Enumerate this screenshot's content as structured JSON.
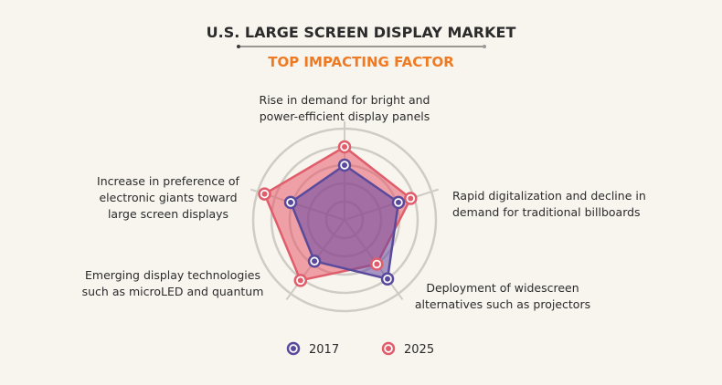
{
  "header": {
    "title": "U.S. LARGE SCREEN DISPLAY MARKET",
    "subtitle": "TOP IMPACTING FACTOR"
  },
  "colors": {
    "background": "#f8f5ef",
    "title": "#2b2b2b",
    "subtitle": "#ee7a24",
    "series_2017": "#5a4a9c",
    "series_2025": "#e05d6b",
    "grid": "#cfcbc5"
  },
  "chart_data": {
    "type": "radar",
    "title": "U.S. LARGE SCREEN DISPLAY MARKET",
    "subtitle": "TOP IMPACTING FACTOR",
    "scale_max": 5,
    "rings": 5,
    "grid": true,
    "legend_position": "bottom",
    "axes": [
      {
        "lines": [
          "Rise in demand for bright and",
          "power-efficient display panels"
        ]
      },
      {
        "lines": [
          "Rapid digitalization and decline in",
          "demand for traditional billboards"
        ]
      },
      {
        "lines": [
          "Deployment of widescreen",
          "alternatives such as projectors"
        ]
      },
      {
        "lines": [
          "Emerging display technologies",
          "such as microLED and quantum"
        ]
      },
      {
        "lines": [
          "Increase in preference of",
          "electronic giants toward",
          "large screen displays"
        ]
      }
    ],
    "series": [
      {
        "name": "2017",
        "values": [
          3.0,
          3.1,
          4.0,
          2.8,
          3.1
        ]
      },
      {
        "name": "2025",
        "values": [
          4.0,
          3.8,
          3.0,
          4.1,
          4.6
        ]
      }
    ]
  }
}
